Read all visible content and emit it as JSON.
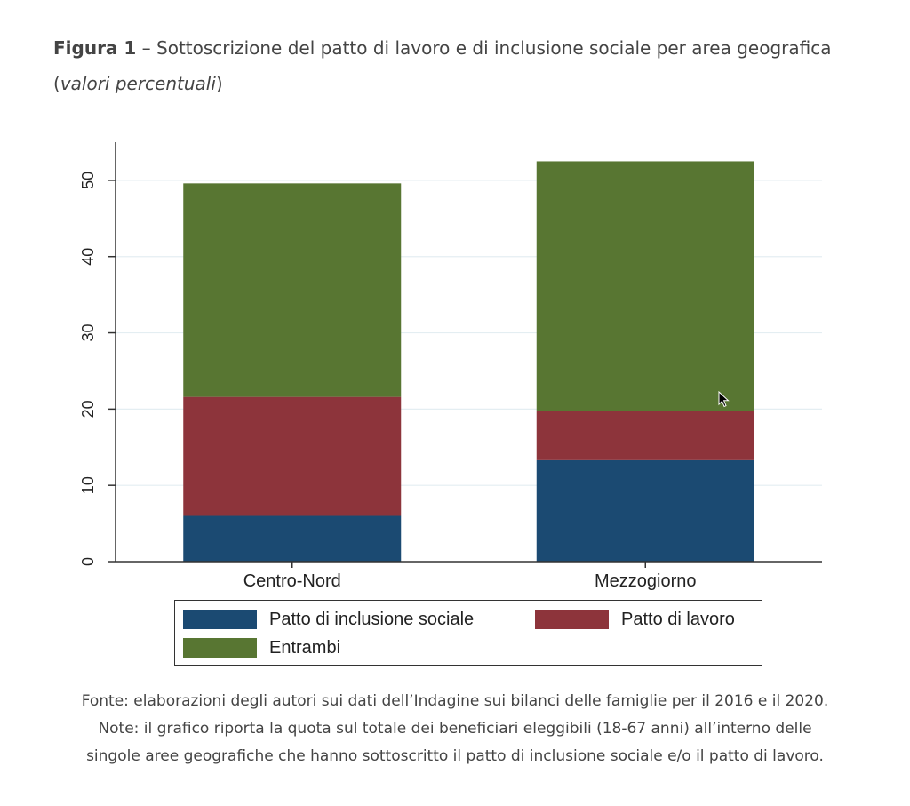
{
  "caption": {
    "figure_label": "Figura 1",
    "title": "– Sottoscrizione del patto di lavoro e di inclusione sociale per area geografica",
    "subtitle_open": "(",
    "subtitle_italic": "valori percentuali",
    "subtitle_close": ")"
  },
  "chart_data": {
    "type": "bar",
    "stacked": true,
    "categories": [
      "Centro-Nord",
      "Mezzogiorno"
    ],
    "series": [
      {
        "name": "Patto di inclusione sociale",
        "values": [
          6.0,
          13.3
        ],
        "color": "#1b4a72"
      },
      {
        "name": "Patto di lavoro",
        "values": [
          15.6,
          6.4
        ],
        "color": "#8d343b"
      },
      {
        "name": "Entrambi",
        "values": [
          28.0,
          32.8
        ],
        "color": "#587632"
      }
    ],
    "ylim": [
      0,
      55
    ],
    "yticks": [
      0,
      10,
      20,
      30,
      40,
      50
    ],
    "grid": true,
    "legend_position": "bottom"
  },
  "legend": {
    "items": [
      {
        "label": "Patto di inclusione sociale",
        "color": "#1b4a72"
      },
      {
        "label": "Patto di lavoro",
        "color": "#8d343b"
      },
      {
        "label": "Entrambi",
        "color": "#587632"
      }
    ]
  },
  "notes": {
    "line1": "Fonte: elaborazioni degli autori sui dati dell’Indagine sui bilanci delle famiglie per il 2016 e il 2020.",
    "line2": "Note: il grafico riporta la quota sul totale dei beneficiari eleggibili (18-67 anni) all’interno delle",
    "line3": "singole aree geografiche che hanno sottoscritto il patto di inclusione sociale e/o il patto di lavoro."
  }
}
